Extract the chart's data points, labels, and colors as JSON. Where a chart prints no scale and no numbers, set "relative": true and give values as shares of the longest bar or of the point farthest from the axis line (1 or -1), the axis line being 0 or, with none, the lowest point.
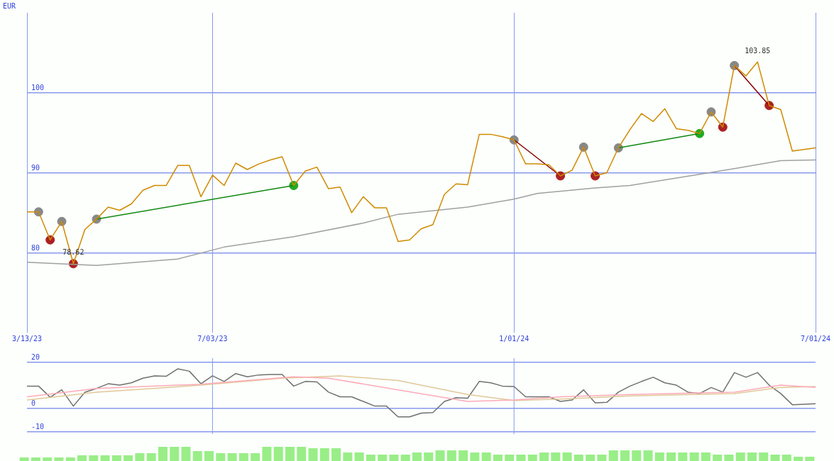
{
  "chart_data": [
    {
      "type": "line",
      "ylabel": "EUR",
      "marker": "none",
      "grid": true,
      "legend": false,
      "x": [
        "2023-03-13",
        "2023-03-20",
        "2023-03-27",
        "2023-04-03",
        "2023-04-10",
        "2023-04-17",
        "2023-04-24",
        "2023-05-01",
        "2023-05-08",
        "2023-05-15",
        "2023-05-22",
        "2023-05-29",
        "2023-06-05",
        "2023-06-12",
        "2023-06-19",
        "2023-06-26",
        "2023-07-03",
        "2023-07-10",
        "2023-07-17",
        "2023-07-24",
        "2023-07-31",
        "2023-08-07",
        "2023-08-14",
        "2023-08-21",
        "2023-08-28",
        "2023-09-04",
        "2023-09-11",
        "2023-09-18",
        "2023-09-25",
        "2023-10-02",
        "2023-10-09",
        "2023-10-16",
        "2023-10-23",
        "2023-10-30",
        "2023-11-06",
        "2023-11-13",
        "2023-11-20",
        "2023-11-27",
        "2023-12-04",
        "2023-12-11",
        "2023-12-18",
        "2023-12-25",
        "2024-01-01",
        "2024-01-08",
        "2024-01-15",
        "2024-01-22",
        "2024-01-29",
        "2024-02-05",
        "2024-02-12",
        "2024-02-19",
        "2024-02-26",
        "2024-03-04",
        "2024-03-11",
        "2024-03-18",
        "2024-03-25",
        "2024-04-01",
        "2024-04-08",
        "2024-04-15",
        "2024-04-22",
        "2024-04-29",
        "2024-05-06",
        "2024-05-13",
        "2024-05-20",
        "2024-05-27",
        "2024-06-03",
        "2024-06-10",
        "2024-06-17",
        "2024-06-24",
        "2024-07-01"
      ],
      "xlim": [
        "2023-03-13",
        "2024-07-01"
      ],
      "xticks": [
        {
          "value": "2023-03-13",
          "label": "3/13/23"
        },
        {
          "value": "2023-07-03",
          "label": "7/03/23"
        },
        {
          "value": "2024-01-01",
          "label": "1/01/24"
        },
        {
          "value": "2024-07-01",
          "label": "7/01/24"
        }
      ],
      "ylim": [
        70,
        110
      ],
      "yticks": [
        80,
        90,
        100
      ],
      "annotations": [
        {
          "text": "103.85",
          "x": "2024-05-27",
          "y": 103.85
        },
        {
          "text": "78.62",
          "x": "2023-04-10",
          "y": 78.62
        }
      ],
      "series": [
        {
          "color": "#d08a00",
          "values": [
            85.1,
            85.1,
            81.6,
            83.9,
            78.62,
            82.9,
            84.2,
            85.7,
            85.3,
            86.1,
            87.8,
            88.4,
            88.4,
            90.9,
            90.9,
            87.0,
            89.7,
            88.4,
            91.2,
            90.4,
            91.1,
            91.6,
            92.0,
            88.4,
            90.2,
            90.7,
            88.0,
            88.2,
            85.0,
            87.0,
            85.6,
            85.6,
            81.4,
            81.6,
            83.0,
            83.5,
            87.3,
            88.6,
            88.5,
            94.8,
            94.8,
            94.5,
            94.1,
            91.1,
            91.1,
            91.0,
            89.6,
            90.3,
            93.2,
            89.6,
            90.0,
            93.1,
            95.4,
            97.4,
            96.4,
            98.0,
            95.5,
            95.3,
            94.9,
            97.6,
            95.7,
            103.4,
            102.1,
            103.85,
            98.4,
            97.9,
            92.7,
            92.9,
            93.1
          ]
        },
        {
          "color": "#a0a0a0",
          "x": [
            "2023-03-13",
            "2023-04-24",
            "2023-06-12",
            "2023-07-10",
            "2023-08-21",
            "2023-10-02",
            "2023-10-23",
            "2023-12-04",
            "2024-01-01",
            "2024-01-15",
            "2024-02-19",
            "2024-03-11",
            "2024-04-22",
            "2024-05-13",
            "2024-06-10",
            "2024-07-01"
          ],
          "values": [
            78.8,
            78.4,
            79.2,
            80.7,
            82.0,
            83.7,
            84.8,
            85.7,
            86.7,
            87.4,
            88.1,
            88.4,
            89.8,
            90.5,
            91.5,
            91.6
          ]
        },
        {
          "color": "#118811",
          "x": [
            "2023-04-24",
            "2023-08-21",
            "2024-01-15",
            "2024-03-04",
            "2024-04-22"
          ],
          "values": [
            84.2,
            88.4,
            null,
            93.1,
            94.9
          ]
        },
        {
          "color": "#880000",
          "x": [
            "2024-01-01",
            "2024-01-29",
            "2024-02-05",
            "2024-05-13",
            "2024-06-03"
          ],
          "values": [
            94.1,
            89.6,
            null,
            103.4,
            98.4
          ]
        },
        {
          "type": "scatter",
          "marker": "circle",
          "color": "#888888",
          "x": [
            "2023-03-20",
            "2023-04-03",
            "2023-04-24",
            "2024-01-01",
            "2024-02-12",
            "2024-03-04",
            "2024-04-29",
            "2024-05-13"
          ],
          "values": [
            85.1,
            83.9,
            84.2,
            94.1,
            93.2,
            93.1,
            97.6,
            103.4
          ]
        },
        {
          "type": "scatter",
          "marker": "circle",
          "color": "#aa2222",
          "x": [
            "2023-03-27",
            "2023-04-10",
            "2024-01-29",
            "2024-02-19",
            "2024-05-06",
            "2024-06-03"
          ],
          "values": [
            81.6,
            78.62,
            89.6,
            89.6,
            95.7,
            98.4
          ]
        },
        {
          "type": "scatter",
          "marker": "circle",
          "color": "#22aa22",
          "x": [
            "2023-08-21",
            "2024-04-22"
          ],
          "values": [
            88.4,
            94.9
          ]
        }
      ]
    },
    {
      "type": "line",
      "marker": "none",
      "grid": "y",
      "legend": false,
      "tick_labels": "y",
      "x": [
        "2023-03-13",
        "2023-03-20",
        "2023-03-27",
        "2023-04-03",
        "2023-04-10",
        "2023-04-17",
        "2023-04-24",
        "2023-05-01",
        "2023-05-08",
        "2023-05-15",
        "2023-05-22",
        "2023-05-29",
        "2023-06-05",
        "2023-06-12",
        "2023-06-19",
        "2023-06-26",
        "2023-07-03",
        "2023-07-10",
        "2023-07-17",
        "2023-07-24",
        "2023-07-31",
        "2023-08-07",
        "2023-08-14",
        "2023-08-21",
        "2023-08-28",
        "2023-09-04",
        "2023-09-11",
        "2023-09-18",
        "2023-09-25",
        "2023-10-02",
        "2023-10-09",
        "2023-10-16",
        "2023-10-23",
        "2023-10-30",
        "2023-11-06",
        "2023-11-13",
        "2023-11-20",
        "2023-11-27",
        "2023-12-04",
        "2023-12-11",
        "2023-12-18",
        "2023-12-25",
        "2024-01-01",
        "2024-01-08",
        "2024-01-15",
        "2024-01-22",
        "2024-01-29",
        "2024-02-05",
        "2024-02-12",
        "2024-02-19",
        "2024-02-26",
        "2024-03-04",
        "2024-03-11",
        "2024-03-18",
        "2024-03-25",
        "2024-04-01",
        "2024-04-08",
        "2024-04-15",
        "2024-04-22",
        "2024-04-29",
        "2024-05-06",
        "2024-05-13",
        "2024-05-20",
        "2024-05-27",
        "2024-06-03",
        "2024-06-10",
        "2024-06-17",
        "2024-06-24",
        "2024-07-01"
      ],
      "xlim": [
        "2023-03-13",
        "2024-07-01"
      ],
      "ref_lines": [
        {
          "axis": "x",
          "value": "2023-07-03"
        },
        {
          "axis": "x",
          "value": "2024-01-01"
        }
      ],
      "ylim": [
        -11,
        21.6
      ],
      "yticks": [
        -10,
        0,
        20
      ],
      "series": [
        {
          "color": "#ffaab8",
          "x": [
            "2023-03-13",
            "2023-04-24",
            "2023-06-26",
            "2023-08-21",
            "2023-09-11",
            "2023-10-23",
            "2023-12-04",
            "2024-01-01",
            "2024-01-29",
            "2024-03-11",
            "2024-05-13",
            "2024-06-10",
            "2024-07-01"
          ],
          "values": [
            5,
            8.6,
            10.4,
            13.6,
            13,
            8,
            3,
            3.6,
            5,
            6,
            7,
            10,
            9
          ]
        },
        {
          "color": "#e0c898",
          "x": [
            "2023-03-13",
            "2023-04-24",
            "2023-06-26",
            "2023-08-14",
            "2023-09-18",
            "2023-10-23",
            "2023-12-04",
            "2024-01-01",
            "2024-01-29",
            "2024-03-11",
            "2024-05-13",
            "2024-06-10",
            "2024-07-01"
          ],
          "values": [
            3.6,
            7,
            10,
            13,
            14,
            12,
            6,
            3.4,
            4,
            5.4,
            6.4,
            9,
            9.4
          ]
        },
        {
          "color": "#707070",
          "values": [
            9.6,
            9.6,
            4.8,
            8,
            1,
            7,
            8.6,
            10.6,
            10,
            11,
            13,
            14,
            13.8,
            17,
            16,
            10.6,
            14,
            11.6,
            15,
            13.6,
            14.4,
            14.6,
            14.6,
            9.6,
            11.6,
            11.4,
            7,
            5,
            5,
            3,
            1,
            1,
            -3.6,
            -3.6,
            -2,
            -1.8,
            3,
            4.6,
            4.4,
            11.6,
            11,
            9.6,
            9.4,
            5,
            5,
            5,
            3,
            3.6,
            8,
            2.4,
            2.6,
            7,
            9.6,
            11.6,
            13.4,
            11,
            10,
            7,
            6.4,
            9,
            7,
            15.4,
            13.4,
            15.4,
            10,
            6.4,
            1.6,
            1.8,
            2
          ]
        }
      ]
    },
    {
      "type": "bar",
      "relative": true,
      "legend": false,
      "color": "#99ee88",
      "categories": [
        null,
        null,
        null,
        null,
        null,
        null,
        null,
        null,
        null,
        null,
        null,
        null,
        null,
        null,
        null,
        null,
        null,
        null,
        null,
        null,
        null,
        null,
        null,
        null,
        null,
        null,
        null,
        null,
        null,
        null,
        null,
        null,
        null,
        null,
        null,
        null,
        null,
        null,
        null,
        null,
        null,
        null,
        null,
        null,
        null,
        null,
        null,
        null,
        null,
        null,
        null,
        null,
        null,
        null,
        null,
        null,
        null,
        null,
        null,
        null,
        null,
        null,
        null,
        null,
        null,
        null,
        null,
        null,
        null
      ],
      "values": [
        0.25,
        0.25,
        0.25,
        0.25,
        0.25,
        0.4,
        0.4,
        0.4,
        0.4,
        0.4,
        0.55,
        0.55,
        1,
        1,
        1,
        0.7,
        0.7,
        0.55,
        0.55,
        0.55,
        0.55,
        1,
        1,
        1,
        1,
        0.9,
        0.9,
        0.9,
        0.6,
        0.6,
        0.45,
        0.45,
        0.45,
        0.45,
        0.6,
        0.6,
        0.75,
        0.75,
        0.75,
        0.6,
        0.6,
        0.45,
        0.45,
        0.45,
        0.45,
        0.6,
        0.6,
        0.6,
        0.45,
        0.45,
        0.45,
        0.75,
        0.75,
        0.75,
        0.75,
        0.6,
        0.6,
        0.6,
        0.6,
        0.6,
        0.45,
        0.45,
        0.6,
        0.6,
        0.6,
        0.45,
        0.45,
        0.3,
        0.3
      ]
    }
  ]
}
